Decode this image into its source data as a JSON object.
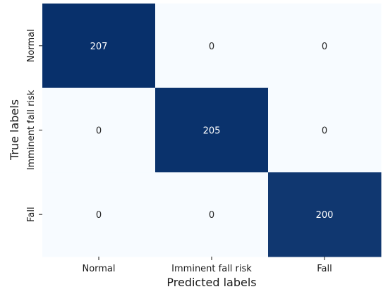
{
  "chart_data": {
    "type": "heatmap",
    "title": "",
    "xlabel": "Predicted labels",
    "ylabel": "True labels",
    "x_categories": [
      "Normal",
      "Imminent fall risk",
      "Fall"
    ],
    "y_categories": [
      "Normal",
      "Imminent fall risk",
      "Fall"
    ],
    "values": [
      [
        207,
        0,
        0
      ],
      [
        0,
        205,
        0
      ],
      [
        0,
        0,
        200
      ]
    ],
    "value_range": [
      0,
      207
    ],
    "colormap": {
      "low": "#f7fbff",
      "high": "#08306b"
    },
    "text_colors": {
      "on_dark": "#ffffff",
      "on_light": "#262626"
    },
    "colorbar": false,
    "grid": false,
    "legend": "none"
  }
}
